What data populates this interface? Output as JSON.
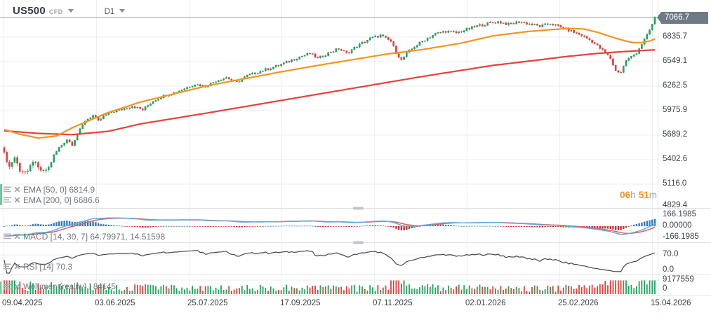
{
  "app": {
    "symbol": "US500",
    "instrument_type": "CFD",
    "timeframe": "D1",
    "countdown": {
      "hours": "06",
      "hours_unit": "h",
      "minutes": "51",
      "minutes_unit": "m"
    }
  },
  "indicators": {
    "ema50": {
      "label": "EMA [50, 0] 6814.9"
    },
    "ema200": {
      "label": "EMA [200, 0] 6686.6"
    },
    "macd": {
      "label": "MACD [14, 30, 7] 64.79971, 14.51598"
    },
    "rsi": {
      "label": "RSI [14] 70.3"
    },
    "volume": {
      "label": "Wolumen (realny) | 84145"
    }
  },
  "axes": {
    "price_current": "7066.7",
    "price_tick_labels": [
      "6835.7",
      "6549.1",
      "6262.5",
      "5975.9",
      "5689.2",
      "5402.6",
      "5116.0",
      "4829.4"
    ],
    "macd_tick_labels": [
      "166.1985",
      "0.00000",
      "-166.1985"
    ],
    "rsi_tick_labels": [
      "70.0",
      "0.0"
    ],
    "volume_tick_labels": [
      "9177559",
      "0"
    ],
    "dates": [
      "09.04.2025",
      "03.06.2025",
      "25.07.2025",
      "17.09.2025",
      "07.11.2025",
      "02.01.2026",
      "25.02.2026",
      "15.04.2026"
    ],
    "time_x": [
      5,
      137,
      269,
      401,
      533,
      665,
      797,
      929
    ]
  },
  "colors": {
    "candle_up": "#27a35f",
    "candle_up_stroke": "#1f8c50",
    "candle_down": "#d8453e",
    "candle_down_stroke": "#c23a33",
    "ema50": "#f7941e",
    "ema200": "#e8403a",
    "macd_line": "#66aadc",
    "signal_line": "#e26060",
    "hist_up": "#2e7cc3",
    "hist_down": "#c5342e",
    "rsi_line": "#41474d",
    "grid": "#eceef0",
    "separator": "#dfe2e5",
    "handle": "#c0c5c9",
    "price_line": "#98a0a6",
    "badge_bg": "#6e7b86",
    "countdown": "#f7941d"
  },
  "chart_data": {
    "type": "candlestick",
    "symbol": "US500",
    "timeframe": "D1",
    "current_price": 7066.7,
    "visible_price_range": [
      4829.4,
      7066.7
    ],
    "candles_count": 250,
    "price_path": [
      [
        0,
        5470
      ],
      [
        2,
        5320
      ],
      [
        4,
        5430
      ],
      [
        6,
        5280
      ],
      [
        9,
        5250
      ],
      [
        11,
        5390
      ],
      [
        13,
        5300
      ],
      [
        15,
        5260
      ],
      [
        17,
        5310
      ],
      [
        19,
        5450
      ],
      [
        21,
        5540
      ],
      [
        24,
        5640
      ],
      [
        26,
        5580
      ],
      [
        28,
        5700
      ],
      [
        31,
        5860
      ],
      [
        34,
        5920
      ],
      [
        36,
        5850
      ],
      [
        38,
        5910
      ],
      [
        41,
        5960
      ],
      [
        45,
        5990
      ],
      [
        49,
        6030
      ],
      [
        53,
        5985
      ],
      [
        57,
        6090
      ],
      [
        61,
        6150
      ],
      [
        65,
        6185
      ],
      [
        69,
        6235
      ],
      [
        73,
        6285
      ],
      [
        77,
        6260
      ],
      [
        81,
        6325
      ],
      [
        85,
        6365
      ],
      [
        89,
        6305
      ],
      [
        93,
        6385
      ],
      [
        97,
        6425
      ],
      [
        101,
        6465
      ],
      [
        105,
        6505
      ],
      [
        109,
        6555
      ],
      [
        113,
        6605
      ],
      [
        117,
        6645
      ],
      [
        120,
        6585
      ],
      [
        124,
        6650
      ],
      [
        128,
        6700
      ],
      [
        131,
        6645
      ],
      [
        135,
        6730
      ],
      [
        140,
        6820
      ],
      [
        144,
        6855
      ],
      [
        148,
        6785
      ],
      [
        150,
        6655
      ],
      [
        152,
        6565
      ],
      [
        154,
        6645
      ],
      [
        157,
        6725
      ],
      [
        161,
        6805
      ],
      [
        165,
        6875
      ],
      [
        169,
        6905
      ],
      [
        173,
        6885
      ],
      [
        177,
        6925
      ],
      [
        181,
        6965
      ],
      [
        185,
        6995
      ],
      [
        189,
        7015
      ],
      [
        193,
        6985
      ],
      [
        197,
        7015
      ],
      [
        201,
        6990
      ],
      [
        205,
        6960
      ],
      [
        209,
        6995
      ],
      [
        213,
        6950
      ],
      [
        217,
        6905
      ],
      [
        221,
        6855
      ],
      [
        225,
        6785
      ],
      [
        228,
        6705
      ],
      [
        230,
        6655
      ],
      [
        232,
        6585
      ],
      [
        234,
        6440
      ],
      [
        236,
        6425
      ],
      [
        238,
        6565
      ],
      [
        240,
        6605
      ],
      [
        242,
        6655
      ],
      [
        244,
        6755
      ],
      [
        246,
        6855
      ],
      [
        248,
        6985
      ],
      [
        249,
        7066.7
      ]
    ],
    "overlays": {
      "ema50_last": 6814.9,
      "ema200_last": 6686.6,
      "ema50_path": [
        [
          0,
          5755
        ],
        [
          6,
          5700
        ],
        [
          13,
          5655
        ],
        [
          20,
          5680
        ],
        [
          26,
          5775
        ],
        [
          39,
          5945
        ],
        [
          52,
          6075
        ],
        [
          66,
          6180
        ],
        [
          79,
          6275
        ],
        [
          93,
          6355
        ],
        [
          106,
          6430
        ],
        [
          120,
          6505
        ],
        [
          133,
          6570
        ],
        [
          147,
          6640
        ],
        [
          160,
          6690
        ],
        [
          174,
          6760
        ],
        [
          187,
          6850
        ],
        [
          200,
          6900
        ],
        [
          210,
          6925
        ],
        [
          216,
          6938
        ],
        [
          222,
          6930
        ],
        [
          227,
          6892
        ],
        [
          233,
          6832
        ],
        [
          238,
          6788
        ],
        [
          241,
          6770
        ],
        [
          244,
          6772
        ],
        [
          247,
          6790
        ],
        [
          249,
          6814.9
        ]
      ],
      "ema200_path": [
        [
          0,
          5740
        ],
        [
          13,
          5710
        ],
        [
          26,
          5695
        ],
        [
          40,
          5735
        ],
        [
          52,
          5820
        ],
        [
          79,
          5955
        ],
        [
          106,
          6095
        ],
        [
          133,
          6235
        ],
        [
          160,
          6375
        ],
        [
          187,
          6505
        ],
        [
          205,
          6570
        ],
        [
          214,
          6605
        ],
        [
          227,
          6645
        ],
        [
          238,
          6668
        ],
        [
          249,
          6686.6
        ]
      ]
    },
    "macd": {
      "fast": 14,
      "slow": 30,
      "signal": 7,
      "last_macd": 64.79971,
      "last_signal": 14.51598,
      "axis_max": 166.1985
    },
    "rsi": {
      "period": 14,
      "last": 70.3,
      "upper_level": 70.0,
      "lower_level": 0.0
    },
    "volume": {
      "axis_max": 9177559,
      "spikes": [
        [
          0,
          4,
          3.2
        ],
        [
          148,
          153,
          2.8
        ],
        [
          229,
          238,
          2.1
        ],
        [
          243,
          249,
          1.8
        ]
      ]
    }
  }
}
